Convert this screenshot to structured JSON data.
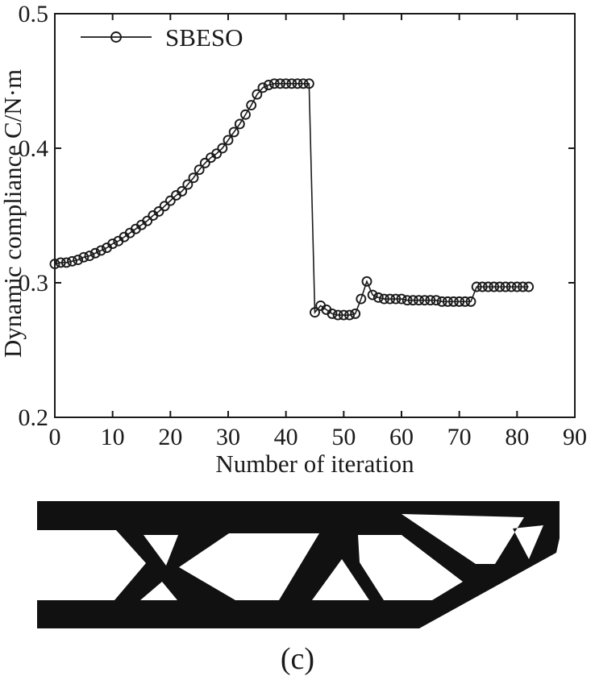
{
  "figure": {
    "caption": "(c)",
    "structure_image": "black-and-white topology-optimized beam result"
  },
  "chart_data": {
    "type": "line",
    "title": "",
    "xlabel": "Number of iteration",
    "ylabel": "Dynamic compliance C/N·m",
    "xlim": [
      0,
      90
    ],
    "ylim": [
      0.2,
      0.5
    ],
    "xticks": [
      0,
      10,
      20,
      30,
      40,
      50,
      60,
      70,
      80,
      90
    ],
    "yticks": [
      0.2,
      0.3,
      0.4,
      0.5
    ],
    "grid": false,
    "legend_position": "top-left",
    "marker": "circle",
    "line_color": "#1a1a1a",
    "series": [
      {
        "name": "SBESO",
        "x": [
          0,
          1,
          2,
          3,
          4,
          5,
          6,
          7,
          8,
          9,
          10,
          11,
          12,
          13,
          14,
          15,
          16,
          17,
          18,
          19,
          20,
          21,
          22,
          23,
          24,
          25,
          26,
          27,
          28,
          29,
          30,
          31,
          32,
          33,
          34,
          35,
          36,
          37,
          38,
          39,
          40,
          41,
          42,
          43,
          44,
          45,
          46,
          47,
          48,
          49,
          50,
          51,
          52,
          53,
          54,
          55,
          56,
          57,
          58,
          59,
          60,
          61,
          62,
          63,
          64,
          65,
          66,
          67,
          68,
          69,
          70,
          71,
          72,
          73,
          74,
          75,
          76,
          77,
          78,
          79,
          80,
          81,
          82
        ],
        "y": [
          0.314,
          0.315,
          0.315,
          0.316,
          0.317,
          0.319,
          0.32,
          0.322,
          0.324,
          0.326,
          0.329,
          0.331,
          0.334,
          0.337,
          0.34,
          0.343,
          0.346,
          0.35,
          0.353,
          0.357,
          0.361,
          0.365,
          0.368,
          0.373,
          0.378,
          0.384,
          0.389,
          0.393,
          0.396,
          0.4,
          0.406,
          0.412,
          0.418,
          0.425,
          0.432,
          0.44,
          0.445,
          0.447,
          0.448,
          0.448,
          0.448,
          0.448,
          0.448,
          0.448,
          0.448,
          0.278,
          0.283,
          0.28,
          0.277,
          0.276,
          0.276,
          0.276,
          0.277,
          0.288,
          0.301,
          0.291,
          0.289,
          0.288,
          0.288,
          0.288,
          0.288,
          0.287,
          0.287,
          0.287,
          0.287,
          0.287,
          0.287,
          0.286,
          0.286,
          0.286,
          0.286,
          0.286,
          0.286,
          0.297,
          0.297,
          0.297,
          0.297,
          0.297,
          0.297,
          0.297,
          0.297,
          0.297,
          0.297
        ]
      }
    ]
  }
}
